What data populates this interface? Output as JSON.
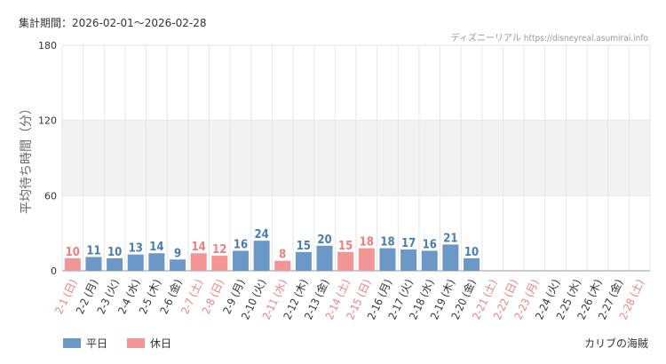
{
  "header": {
    "period": "集計期間：2026-02-01～2026-02-28",
    "credit": "ディズニーリアル https://disneyreal.asumirai.info"
  },
  "footer": {
    "place": "カリブの海賊"
  },
  "legend": {
    "weekday": "平日",
    "holiday": "休日"
  },
  "colors": {
    "weekday_bar": "#6b98c6",
    "holiday_bar": "#f39495",
    "weekday_label": "#4a7cb0",
    "holiday_label": "#ee7f80",
    "shaded_band": "#f2f2f2",
    "grid": "#e6e6e6"
  },
  "chart_data": {
    "type": "bar",
    "ylabel": "平均待ち時間（分）",
    "ylim": [
      0,
      180
    ],
    "yticks": [
      0,
      60,
      120,
      180
    ],
    "shaded_range": [
      60,
      120
    ],
    "grid": true,
    "legend_position": "bottom-left",
    "categories": [
      "2-1 (日)",
      "2-2 (月)",
      "2-3 (火)",
      "2-4 (水)",
      "2-5 (木)",
      "2-6 (金)",
      "2-7 (土)",
      "2-8 (日)",
      "2-9 (月)",
      "2-10 (火)",
      "2-11 (水)",
      "2-12 (木)",
      "2-13 (金)",
      "2-14 (土)",
      "2-15 (日)",
      "2-16 (月)",
      "2-17 (火)",
      "2-18 (水)",
      "2-19 (木)",
      "2-20 (金)",
      "2-21 (土)",
      "2-22 (日)",
      "2-23 (月)",
      "2-24 (火)",
      "2-25 (水)",
      "2-26 (木)",
      "2-27 (金)",
      "2-28 (土)"
    ],
    "holiday": [
      true,
      false,
      false,
      false,
      false,
      false,
      true,
      true,
      false,
      false,
      true,
      false,
      false,
      true,
      true,
      false,
      false,
      false,
      false,
      false,
      true,
      true,
      true,
      false,
      false,
      false,
      false,
      true
    ],
    "values": [
      10,
      11,
      10,
      13,
      14,
      9,
      14,
      12,
      16,
      24,
      8,
      15,
      20,
      15,
      18,
      18,
      17,
      16,
      21,
      10,
      null,
      null,
      null,
      null,
      null,
      null,
      null,
      null
    ]
  }
}
